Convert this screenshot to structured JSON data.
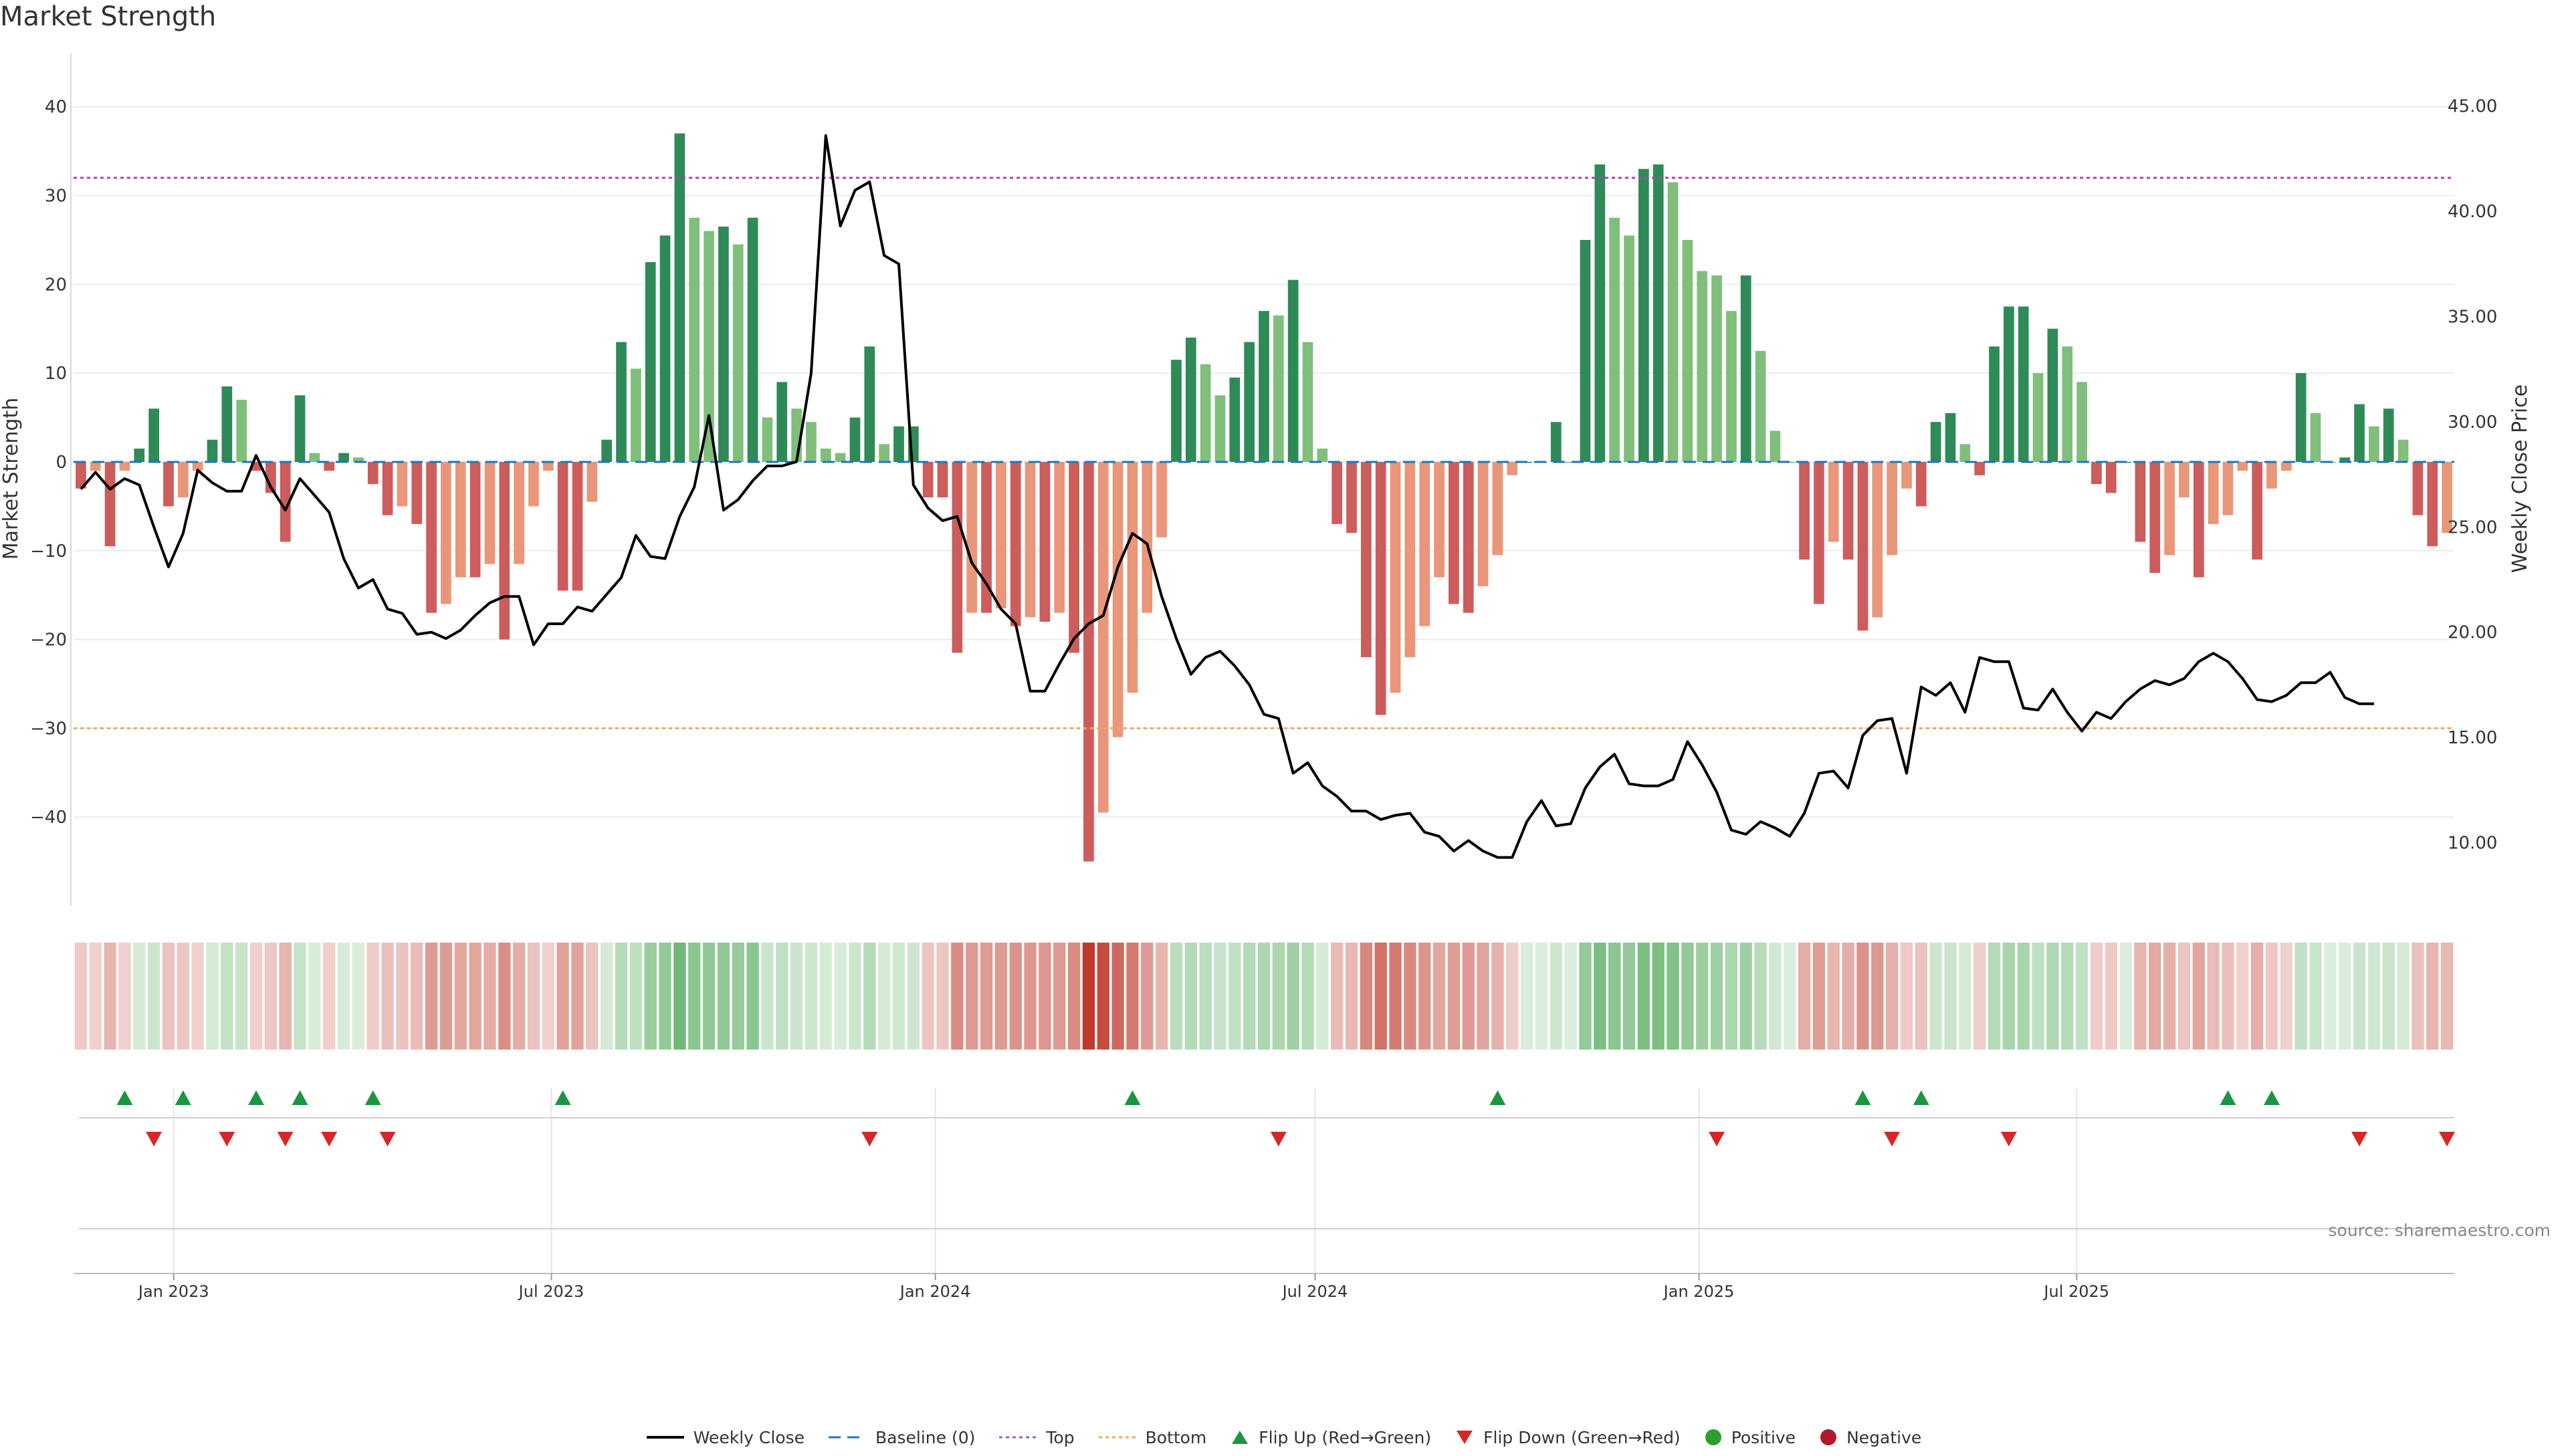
{
  "title": "Market Strength",
  "source": "source: sharemaestro.com",
  "legend": [
    {
      "key": "weekly-close",
      "label": "Weekly Close",
      "color": "#000000"
    },
    {
      "key": "baseline",
      "label": "Baseline (0)",
      "color": "#1f77b4"
    },
    {
      "key": "top",
      "label": "Top",
      "color": "#9467bd"
    },
    {
      "key": "bottom",
      "label": "Bottom",
      "color": "#f4a460"
    },
    {
      "key": "flip-up",
      "label": "Flip Up (Red→Green)",
      "color": "#1a9641"
    },
    {
      "key": "flip-down",
      "label": "Flip Down (Green→Red)",
      "color": "#d62728"
    },
    {
      "key": "positive",
      "label": "Positive",
      "color": "#2ca02c"
    },
    {
      "key": "negative",
      "label": "Negative",
      "color": "#b2182b"
    }
  ],
  "chart_data": {
    "type": "bar",
    "ylabel": "Market Strength",
    "y2label": "Weekly Close Price",
    "ylim": [
      -50,
      46
    ],
    "y2lim": [
      7,
      47.5
    ],
    "yticks": [
      40,
      30,
      20,
      10,
      0,
      -10,
      -20,
      -30,
      -40
    ],
    "y2ticks": [
      "45.00",
      "40.00",
      "35.00",
      "30.00",
      "25.00",
      "20.00",
      "15.00",
      "10.00"
    ],
    "xticks": [
      "Jan 2023",
      "Jul 2023",
      "Jan 2024",
      "Jul 2024",
      "Jan 2025",
      "Jul 2025"
    ],
    "top_line": 32,
    "bottom_line": -30,
    "colors": {
      "pos_strong": "#2e8b57",
      "pos_light": "#7fbf7b",
      "neg_strong": "#cd5c5c",
      "neg_light": "#e9967a",
      "heat_pos": "#5aae61",
      "heat_neg": "#c0392b",
      "flip_up": "#1a9641",
      "flip_down": "#d62728",
      "close": "#000000"
    },
    "start_week": "2022-11-14",
    "strength": [
      -3,
      -1,
      -9.5,
      -1,
      1.5,
      6,
      -5,
      -4,
      -1,
      2.5,
      8.5,
      7,
      -1,
      -3.5,
      -9,
      7.5,
      1,
      -1,
      1,
      0.5,
      -2.5,
      -6,
      -5,
      -7,
      -17,
      -16,
      -13,
      -13,
      -11.5,
      -20,
      -11.5,
      -5,
      -1,
      -14.5,
      -14.5,
      -4.5,
      2.5,
      13.5,
      10.5,
      22.5,
      25.5,
      37,
      27.5,
      26,
      26.5,
      24.5,
      27.5,
      5,
      9,
      6,
      4.5,
      1.5,
      1,
      5,
      13,
      2,
      4,
      4,
      -4,
      -4,
      -21.5,
      -17,
      -17,
      -16.5,
      -18.5,
      -17.5,
      -18,
      -17,
      -21.5,
      -45,
      -39.5,
      -31,
      -26,
      -17,
      -8.5,
      11.5,
      14,
      11,
      7.5,
      9.5,
      13.5,
      17,
      16.5,
      20.5,
      13.5,
      1.5,
      -7,
      -8,
      -22,
      -28.5,
      -26,
      -22,
      -18.5,
      -13,
      -16,
      -17,
      -14,
      -10.5,
      -1.5,
      0,
      0,
      4.5,
      0,
      25,
      33.5,
      27.5,
      25.5,
      33,
      33.5,
      31.5,
      25,
      21.5,
      21,
      17,
      21,
      12.5,
      3.5,
      0,
      -11,
      -16,
      -9,
      -11,
      -19,
      -17.5,
      -10.5,
      -3,
      -5,
      4.5,
      5.5,
      2,
      -1.5,
      13,
      17.5,
      17.5,
      10,
      15,
      13,
      9,
      -2.5,
      -3.5,
      0,
      -9,
      -12.5,
      -10.5,
      -4,
      -13,
      -7,
      -6,
      -1,
      -11,
      -3,
      -1,
      10,
      5.5,
      0,
      0.5,
      6.5,
      4,
      6,
      2.5,
      -6,
      -9.5,
      -8
    ],
    "close": [
      26.8,
      27.6,
      26.8,
      27.3,
      27.0,
      25.0,
      23.1,
      24.7,
      27.7,
      27.1,
      26.7,
      26.7,
      28.4,
      26.9,
      25.8,
      27.3,
      26.5,
      25.7,
      23.5,
      22.1,
      22.5,
      21.1,
      20.9,
      19.9,
      20.0,
      19.7,
      20.1,
      20.8,
      21.4,
      21.7,
      21.7,
      19.4,
      20.4,
      20.4,
      21.2,
      21.0,
      21.8,
      22.6,
      24.6,
      23.6,
      23.5,
      25.5,
      26.9,
      30.3,
      25.8,
      26.3,
      27.2,
      27.9,
      27.9,
      28.1,
      32.3,
      43.6,
      39.3,
      41.0,
      41.4,
      37.9,
      37.5,
      27.0,
      25.9,
      25.3,
      25.5,
      23.3,
      22.3,
      21.1,
      20.4,
      17.2,
      17.2,
      18.5,
      19.7,
      20.4,
      20.8,
      23.1,
      24.7,
      24.2,
      21.7,
      19.7,
      18.0,
      18.8,
      19.1,
      18.4,
      17.5,
      16.1,
      15.9,
      13.3,
      13.8,
      12.7,
      12.2,
      11.5,
      11.5,
      11.1,
      11.3,
      11.4,
      10.5,
      10.3,
      9.6,
      10.1,
      9.6,
      9.3,
      9.3,
      11.0,
      12.0,
      10.8,
      10.9,
      12.6,
      13.6,
      14.2,
      12.8,
      12.7,
      12.7,
      13.0,
      14.8,
      13.7,
      12.4,
      10.6,
      10.4,
      11.0,
      10.7,
      10.3,
      11.4,
      13.3,
      13.4,
      12.6,
      15.1,
      15.8,
      15.9,
      13.3,
      17.4,
      17.0,
      17.6,
      16.2,
      18.8,
      18.6,
      18.6,
      16.4,
      16.3,
      17.3,
      16.2,
      15.3,
      16.2,
      15.9,
      16.7,
      17.3,
      17.7,
      17.5,
      17.8,
      18.6,
      19.0,
      18.6,
      17.8,
      16.8,
      16.7,
      17.0,
      17.6,
      17.6,
      18.1,
      16.9,
      16.6,
      16.6
    ],
    "flip_up_weeks": [
      3,
      7,
      12,
      15,
      20,
      33,
      72,
      97,
      122,
      126,
      147,
      150
    ],
    "flip_down_weeks": [
      5,
      10,
      14,
      17,
      21,
      54,
      82,
      112,
      124,
      132,
      156,
      162
    ]
  }
}
